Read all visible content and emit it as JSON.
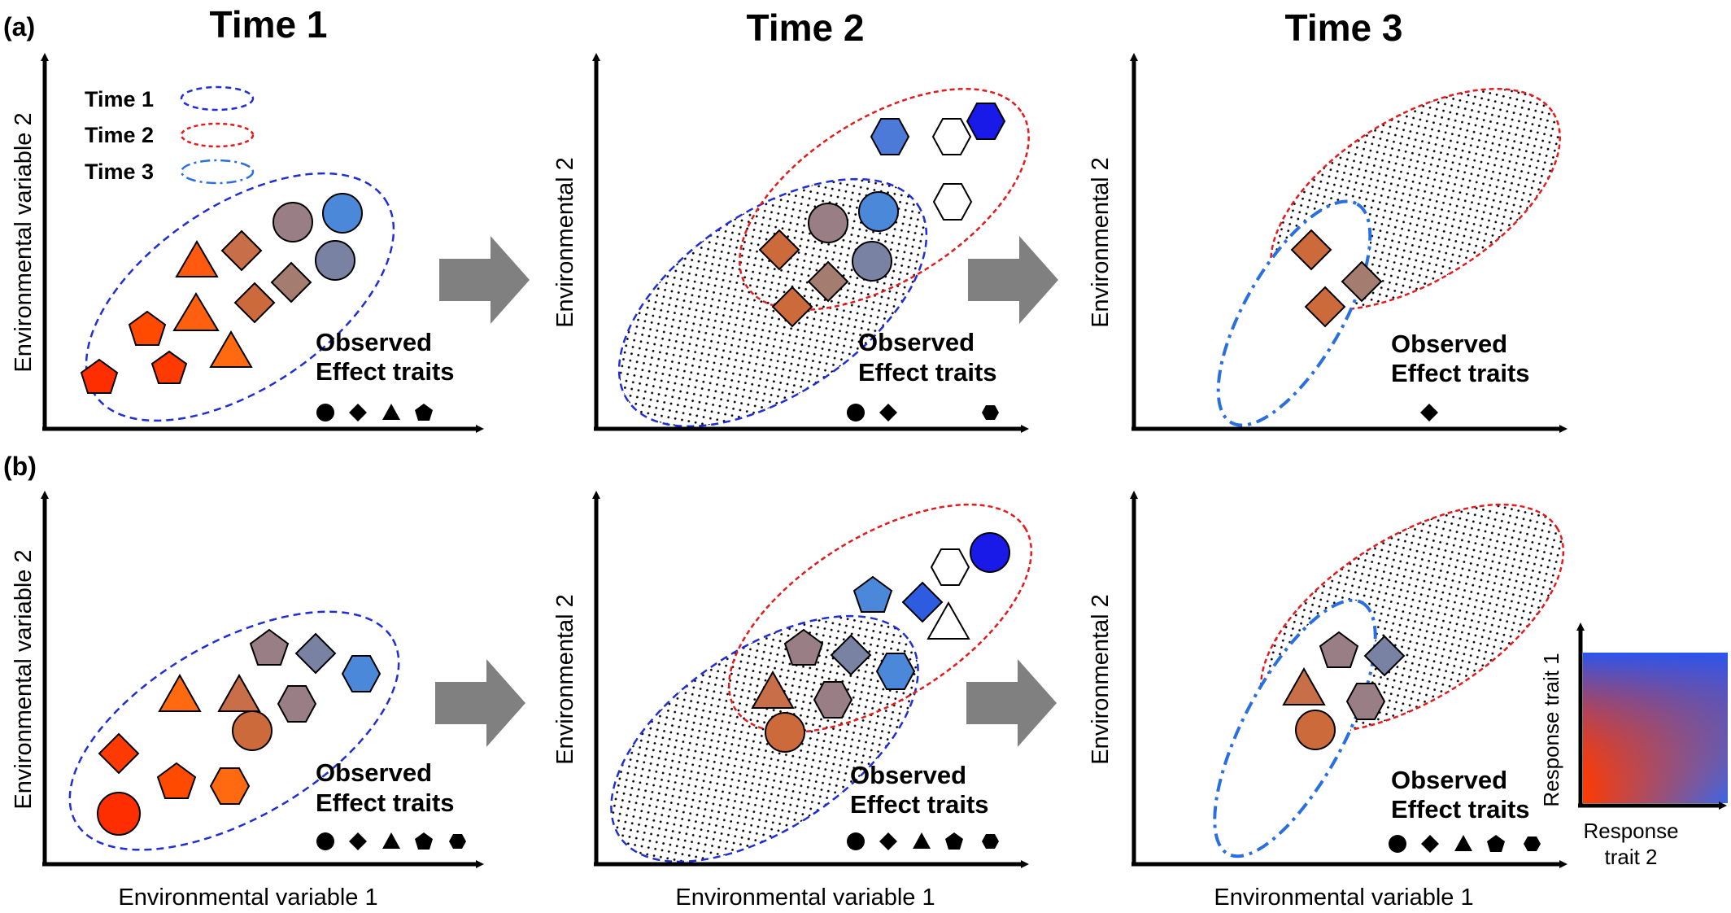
{
  "panel_labels": {
    "a": "(a)",
    "b": "(b)"
  },
  "headers": [
    "Time 1",
    "Time 2",
    "Time 3"
  ],
  "legend": {
    "items": [
      "Time 1",
      "Time 2",
      "Time 3"
    ]
  },
  "observed": {
    "line1": "Observed",
    "line2": "Effect traits"
  },
  "axes": {
    "y_col1": "Environmental variable 2",
    "y_col23": "Environmental 2",
    "x": "Environmental variable 1"
  },
  "response_key": {
    "y": "Response trait 1",
    "x_line1": "Response",
    "x_line2": "trait 2"
  },
  "colors": {
    "time1_ellipse": "#1f2ed6",
    "time2_ellipse": "#e41a1c",
    "time3_ellipse": "#2a6fe0",
    "arrow": "#808080",
    "red": "#ff2e00",
    "orange": "#ff6a10",
    "brown_orange": "#cc6a3c",
    "mauve": "#9a7e86",
    "slate": "#7a82a4",
    "light_blue": "#4c88da",
    "blue": "#1a1ae8",
    "white": "#ffffff"
  },
  "observed_trait_icons": {
    "a": [
      [
        "circle-icon",
        "diamond-icon",
        "triangle-icon",
        "pentagon-icon"
      ],
      [
        "circle-icon",
        "diamond-icon",
        "hexagon-icon"
      ],
      [
        "diamond-icon"
      ]
    ],
    "b": [
      [
        "circle-icon",
        "diamond-icon",
        "triangle-icon",
        "pentagon-icon",
        "hexagon-icon"
      ],
      [
        "circle-icon",
        "diamond-icon",
        "triangle-icon",
        "pentagon-icon",
        "hexagon-icon"
      ],
      [
        "circle-icon",
        "diamond-icon",
        "triangle-icon",
        "pentagon-icon",
        "hexagon-icon"
      ]
    ]
  }
}
